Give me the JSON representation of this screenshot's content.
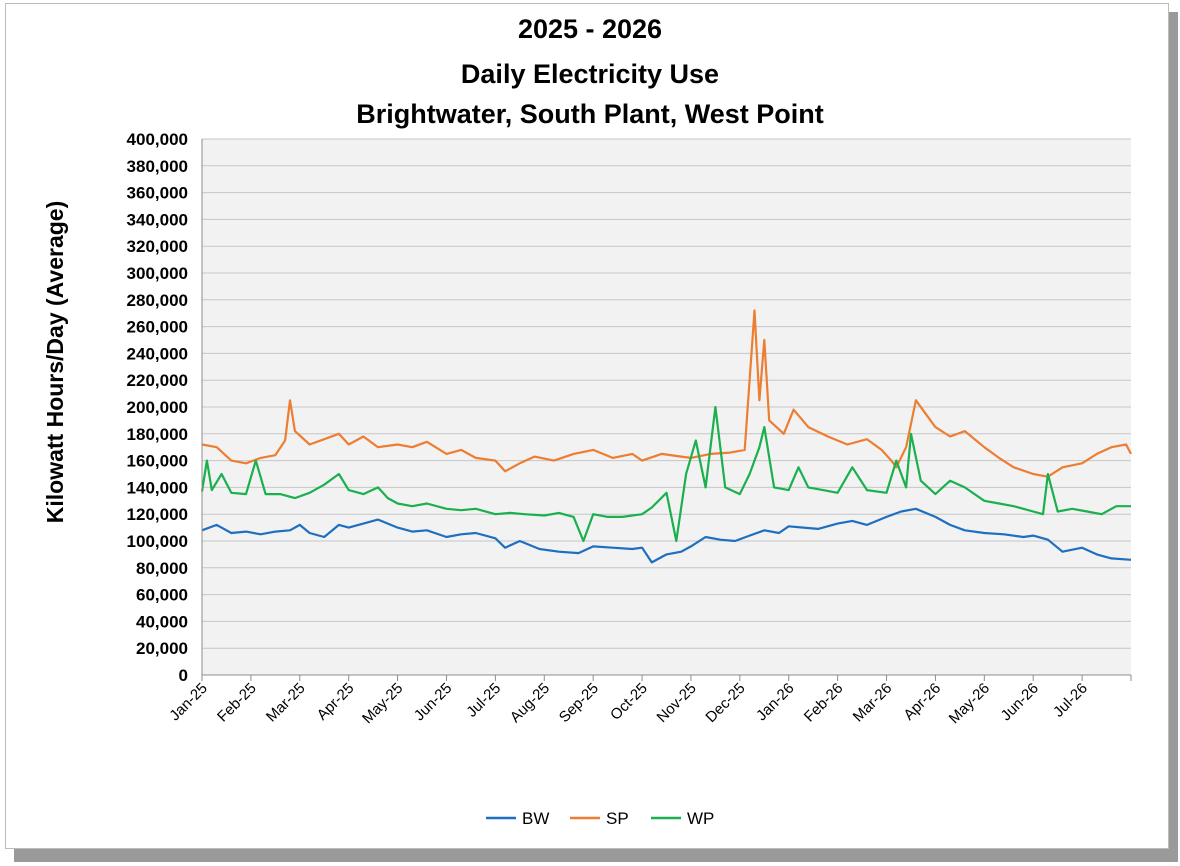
{
  "chart_data": {
    "type": "line",
    "title_lines": [
      "2025 - 2026",
      "Daily Electricity Use",
      "Brightwater, South Plant, West Point"
    ],
    "ylabel": "Kilowatt Hours/Day (Average)",
    "xlabel": "",
    "ylim": [
      0,
      400000
    ],
    "ytick_step": 20000,
    "ytick_labels": [
      "0",
      "20,000",
      "40,000",
      "60,000",
      "80,000",
      "100,000",
      "120,000",
      "140,000",
      "160,000",
      "180,000",
      "200,000",
      "220,000",
      "240,000",
      "260,000",
      "280,000",
      "300,000",
      "320,000",
      "340,000",
      "360,000",
      "380,000",
      "400,000"
    ],
    "x_tick_labels": [
      "Jan-25",
      "Feb-25",
      "Mar-25",
      "Apr-25",
      "May-25",
      "Jun-25",
      "Jul-25",
      "Aug-25",
      "Sep-25",
      "Oct-25",
      "Nov-25",
      "Dec-25",
      "Jan-26",
      "Feb-26",
      "Mar-26",
      "Apr-26",
      "May-26",
      "Jun-26",
      "Jul-26"
    ],
    "grid": true,
    "legend_position": "bottom",
    "series": [
      {
        "name": "BW",
        "color": "#1f6fc0",
        "points": [
          [
            0,
            108000
          ],
          [
            0.3,
            112000
          ],
          [
            0.6,
            106000
          ],
          [
            0.9,
            107000
          ],
          [
            1.2,
            105000
          ],
          [
            1.5,
            107000
          ],
          [
            1.8,
            108000
          ],
          [
            2,
            112000
          ],
          [
            2.2,
            106000
          ],
          [
            2.5,
            103000
          ],
          [
            2.8,
            112000
          ],
          [
            3,
            110000
          ],
          [
            3.3,
            113000
          ],
          [
            3.6,
            116000
          ],
          [
            4,
            110000
          ],
          [
            4.3,
            107000
          ],
          [
            4.6,
            108000
          ],
          [
            5,
            103000
          ],
          [
            5.3,
            105000
          ],
          [
            5.6,
            106000
          ],
          [
            6,
            102000
          ],
          [
            6.2,
            95000
          ],
          [
            6.5,
            100000
          ],
          [
            6.9,
            94000
          ],
          [
            7.3,
            92000
          ],
          [
            7.7,
            91000
          ],
          [
            8,
            96000
          ],
          [
            8.4,
            95000
          ],
          [
            8.8,
            94000
          ],
          [
            9,
            95000
          ],
          [
            9.2,
            84000
          ],
          [
            9.5,
            90000
          ],
          [
            9.8,
            92000
          ],
          [
            10,
            96000
          ],
          [
            10.3,
            103000
          ],
          [
            10.6,
            101000
          ],
          [
            10.9,
            100000
          ],
          [
            11.2,
            104000
          ],
          [
            11.5,
            108000
          ],
          [
            11.8,
            106000
          ],
          [
            12,
            111000
          ],
          [
            12.3,
            110000
          ],
          [
            12.6,
            109000
          ],
          [
            13,
            113000
          ],
          [
            13.3,
            115000
          ],
          [
            13.6,
            112000
          ],
          [
            14,
            118000
          ],
          [
            14.3,
            122000
          ],
          [
            14.6,
            124000
          ],
          [
            15,
            118000
          ],
          [
            15.3,
            112000
          ],
          [
            15.6,
            108000
          ],
          [
            16,
            106000
          ],
          [
            16.4,
            105000
          ],
          [
            16.8,
            103000
          ],
          [
            17,
            104000
          ],
          [
            17.3,
            101000
          ],
          [
            17.6,
            92000
          ],
          [
            18,
            95000
          ],
          [
            18.3,
            90000
          ],
          [
            18.6,
            87000
          ],
          [
            19,
            86000
          ]
        ]
      },
      {
        "name": "SP",
        "color": "#ed7d31",
        "points": [
          [
            0,
            172000
          ],
          [
            0.3,
            170000
          ],
          [
            0.6,
            160000
          ],
          [
            0.9,
            158000
          ],
          [
            1.2,
            162000
          ],
          [
            1.5,
            164000
          ],
          [
            1.7,
            175000
          ],
          [
            1.8,
            205000
          ],
          [
            1.9,
            182000
          ],
          [
            2.2,
            172000
          ],
          [
            2.5,
            176000
          ],
          [
            2.8,
            180000
          ],
          [
            3,
            172000
          ],
          [
            3.3,
            178000
          ],
          [
            3.6,
            170000
          ],
          [
            4,
            172000
          ],
          [
            4.3,
            170000
          ],
          [
            4.6,
            174000
          ],
          [
            5,
            165000
          ],
          [
            5.3,
            168000
          ],
          [
            5.6,
            162000
          ],
          [
            6,
            160000
          ],
          [
            6.2,
            152000
          ],
          [
            6.5,
            158000
          ],
          [
            6.8,
            163000
          ],
          [
            7.2,
            160000
          ],
          [
            7.6,
            165000
          ],
          [
            8,
            168000
          ],
          [
            8.4,
            162000
          ],
          [
            8.8,
            165000
          ],
          [
            9,
            160000
          ],
          [
            9.4,
            165000
          ],
          [
            9.8,
            163000
          ],
          [
            10,
            162000
          ],
          [
            10.4,
            165000
          ],
          [
            10.8,
            166000
          ],
          [
            11.1,
            168000
          ],
          [
            11.3,
            272000
          ],
          [
            11.4,
            205000
          ],
          [
            11.5,
            250000
          ],
          [
            11.6,
            190000
          ],
          [
            11.9,
            180000
          ],
          [
            12.1,
            198000
          ],
          [
            12.4,
            185000
          ],
          [
            12.8,
            178000
          ],
          [
            13.2,
            172000
          ],
          [
            13.6,
            176000
          ],
          [
            13.9,
            168000
          ],
          [
            14.1,
            160000
          ],
          [
            14.2,
            155000
          ],
          [
            14.4,
            170000
          ],
          [
            14.6,
            205000
          ],
          [
            14.8,
            195000
          ],
          [
            15,
            185000
          ],
          [
            15.3,
            178000
          ],
          [
            15.6,
            182000
          ],
          [
            16,
            170000
          ],
          [
            16.3,
            162000
          ],
          [
            16.6,
            155000
          ],
          [
            17,
            150000
          ],
          [
            17.3,
            148000
          ],
          [
            17.6,
            155000
          ],
          [
            18,
            158000
          ],
          [
            18.3,
            165000
          ],
          [
            18.6,
            170000
          ],
          [
            18.9,
            172000
          ],
          [
            19,
            165000
          ]
        ]
      },
      {
        "name": "WP",
        "color": "#19b04d",
        "points": [
          [
            0,
            137000
          ],
          [
            0.1,
            160000
          ],
          [
            0.2,
            138000
          ],
          [
            0.4,
            150000
          ],
          [
            0.6,
            136000
          ],
          [
            0.9,
            135000
          ],
          [
            1.1,
            160000
          ],
          [
            1.3,
            135000
          ],
          [
            1.6,
            135000
          ],
          [
            1.9,
            132000
          ],
          [
            2.2,
            136000
          ],
          [
            2.5,
            142000
          ],
          [
            2.8,
            150000
          ],
          [
            3,
            138000
          ],
          [
            3.3,
            135000
          ],
          [
            3.6,
            140000
          ],
          [
            3.8,
            132000
          ],
          [
            4,
            128000
          ],
          [
            4.3,
            126000
          ],
          [
            4.6,
            128000
          ],
          [
            5,
            124000
          ],
          [
            5.3,
            123000
          ],
          [
            5.6,
            124000
          ],
          [
            6,
            120000
          ],
          [
            6.3,
            121000
          ],
          [
            6.6,
            120000
          ],
          [
            7,
            119000
          ],
          [
            7.3,
            121000
          ],
          [
            7.6,
            118000
          ],
          [
            7.8,
            100000
          ],
          [
            8,
            120000
          ],
          [
            8.3,
            118000
          ],
          [
            8.6,
            118000
          ],
          [
            9,
            120000
          ],
          [
            9.2,
            125000
          ],
          [
            9.5,
            136000
          ],
          [
            9.7,
            100000
          ],
          [
            9.9,
            150000
          ],
          [
            10.1,
            175000
          ],
          [
            10.3,
            140000
          ],
          [
            10.5,
            200000
          ],
          [
            10.7,
            140000
          ],
          [
            11,
            135000
          ],
          [
            11.2,
            150000
          ],
          [
            11.4,
            170000
          ],
          [
            11.5,
            185000
          ],
          [
            11.7,
            140000
          ],
          [
            12,
            138000
          ],
          [
            12.2,
            155000
          ],
          [
            12.4,
            140000
          ],
          [
            12.7,
            138000
          ],
          [
            13,
            136000
          ],
          [
            13.3,
            155000
          ],
          [
            13.6,
            138000
          ],
          [
            14,
            136000
          ],
          [
            14.2,
            160000
          ],
          [
            14.4,
            140000
          ],
          [
            14.5,
            180000
          ],
          [
            14.7,
            145000
          ],
          [
            15,
            135000
          ],
          [
            15.3,
            145000
          ],
          [
            15.6,
            140000
          ],
          [
            16,
            130000
          ],
          [
            16.3,
            128000
          ],
          [
            16.6,
            126000
          ],
          [
            17,
            122000
          ],
          [
            17.2,
            120000
          ],
          [
            17.3,
            150000
          ],
          [
            17.5,
            122000
          ],
          [
            17.8,
            124000
          ],
          [
            18.1,
            122000
          ],
          [
            18.4,
            120000
          ],
          [
            18.7,
            126000
          ],
          [
            19,
            126000
          ]
        ]
      }
    ]
  }
}
